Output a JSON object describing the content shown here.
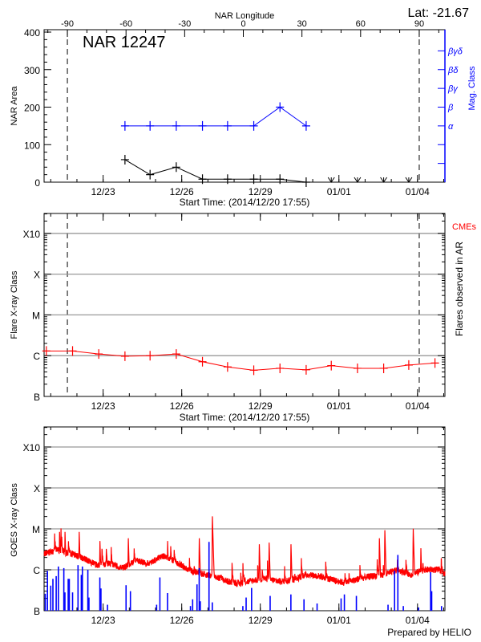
{
  "header": {
    "lat_label": "Lat: -21.67",
    "top_axis_title": "NAR Longitude",
    "footer": "Prepared by HELIO"
  },
  "colors": {
    "axis": "#000000",
    "grid": "#999999",
    "mag_class": "#0000ff",
    "flare": "#ff0000",
    "goes_long": "#ff0000",
    "goes_short": "#0000ff"
  },
  "chart_data": [
    {
      "type": "line",
      "title": "NAR 12247",
      "xlabel": "Start Time: (2014/12/20 17:55)",
      "ylabel": "NAR Area",
      "y2label": "Mag. Class",
      "x_start": "2014-12-20T17:55",
      "x_ticks": [
        {
          "t": "2014-12-23T00:00",
          "label": "12/23"
        },
        {
          "t": "2014-12-26T00:00",
          "label": "12/26"
        },
        {
          "t": "2014-12-29T00:00",
          "label": "12/29"
        },
        {
          "t": "2015-01-01T00:00",
          "label": "01/01"
        },
        {
          "t": "2015-01-04T00:00",
          "label": "01/04"
        }
      ],
      "ylim": [
        0,
        400
      ],
      "y_ticks": [
        0,
        100,
        200,
        300,
        400
      ],
      "top_axis": {
        "title": "NAR Longitude",
        "ticks": [
          -90,
          -60,
          -30,
          0,
          30,
          60,
          90
        ],
        "limb_crossings": [
          {
            "t": "2014-12-21T15:15",
            "lon": -90
          },
          {
            "t": "2015-01-04T01:35",
            "lon": 90
          }
        ]
      },
      "y2_classes": [
        {
          "label": "α",
          "area_equiv": 150
        },
        {
          "label": "β",
          "area_equiv": 200
        },
        {
          "label": "βγ",
          "area_equiv": 250
        },
        {
          "label": "βδ",
          "area_equiv": 300
        },
        {
          "label": "βγδ",
          "area_equiv": 350
        }
      ],
      "grid": false,
      "series": [
        {
          "key": "area",
          "points": [
            [
              "2014-12-23T20:00",
              60
            ],
            [
              "2014-12-24T19:00",
              20
            ],
            [
              "2014-12-25T19:00",
              40
            ],
            [
              "2014-12-26T19:00",
              8
            ],
            [
              "2014-12-27T18:00",
              8
            ],
            [
              "2014-12-28T18:00",
              8
            ],
            [
              "2014-12-29T18:00",
              8
            ],
            [
              "2014-12-30T18:00",
              0
            ]
          ]
        },
        {
          "key": "mag_class",
          "points": [
            [
              "2014-12-23T20:00",
              "α"
            ],
            [
              "2014-12-24T19:00",
              "α"
            ],
            [
              "2014-12-25T19:00",
              "α"
            ],
            [
              "2014-12-26T19:00",
              "α"
            ],
            [
              "2014-12-27T18:00",
              "α"
            ],
            [
              "2014-12-28T18:00",
              "α"
            ],
            [
              "2014-12-29T18:00",
              "β"
            ],
            [
              "2014-12-30T18:00",
              "α"
            ]
          ]
        },
        {
          "key": "no_data_markers",
          "points": [
            "2014-12-31T17:00",
            "2015-01-01T17:00",
            "2015-01-02T17:00",
            "2015-01-03T16:00"
          ]
        }
      ]
    },
    {
      "type": "line",
      "xlabel": "Start Time: (2014/12/20 17:55)",
      "ylabel": "Flare X-ray Class",
      "y2label": "Flares observed in AR",
      "annotation": "CMEs",
      "y_scale": "log",
      "ylim": [
        1e-07,
        0.003
      ],
      "y_ticks": [
        {
          "v": 1e-07,
          "label": "B"
        },
        {
          "v": 1e-06,
          "label": "C"
        },
        {
          "v": 1e-05,
          "label": "M"
        },
        {
          "v": 0.0001,
          "label": "X"
        },
        {
          "v": 0.001,
          "label": "X10"
        }
      ],
      "grid": true,
      "series": [
        {
          "key": "flare_class",
          "points": [
            [
              "2014-12-20T20:00",
              1.3e-06
            ],
            [
              "2014-12-21T20:00",
              1.3e-06
            ],
            [
              "2014-12-22T20:00",
              1.1e-06
            ],
            [
              "2014-12-23T20:00",
              9.7e-07
            ],
            [
              "2014-12-24T19:00",
              1e-06
            ],
            [
              "2014-12-25T19:00",
              1.1e-06
            ],
            [
              "2014-12-26T19:00",
              7.1e-07
            ],
            [
              "2014-12-27T18:00",
              5.3e-07
            ],
            [
              "2014-12-28T18:00",
              4.4e-07
            ],
            [
              "2014-12-29T18:00",
              4.9e-07
            ],
            [
              "2014-12-30T18:00",
              4.5e-07
            ],
            [
              "2014-12-31T17:00",
              5.7e-07
            ],
            [
              "2015-01-01T17:00",
              4.9e-07
            ],
            [
              "2015-01-02T17:00",
              4.9e-07
            ],
            [
              "2015-01-03T16:00",
              5.9e-07
            ],
            [
              "2015-01-04T16:00",
              6.6e-07
            ]
          ]
        }
      ]
    },
    {
      "type": "line",
      "ylabel": "GOES X-ray Class",
      "y_scale": "log",
      "ylim": [
        1e-07,
        0.003
      ],
      "y_ticks": [
        {
          "v": 1e-07,
          "label": "B"
        },
        {
          "v": 1e-06,
          "label": "C"
        },
        {
          "v": 1e-05,
          "label": "M"
        },
        {
          "v": 0.0001,
          "label": "X"
        },
        {
          "v": 0.001,
          "label": "X10"
        }
      ],
      "grid": true,
      "series": [
        {
          "key": "goes_long_background",
          "points": [
            [
              "2014-12-20T18:00",
              2.5e-06
            ],
            [
              "2014-12-21T06:00",
              3e-06
            ],
            [
              "2014-12-21T18:00",
              2.5e-06
            ],
            [
              "2014-12-22T06:00",
              1.9e-06
            ],
            [
              "2014-12-22T18:00",
              1.3e-06
            ],
            [
              "2014-12-23T06:00",
              1.4e-06
            ],
            [
              "2014-12-23T18:00",
              1.1e-06
            ],
            [
              "2014-12-24T06:00",
              1.7e-06
            ],
            [
              "2014-12-24T18:00",
              1.4e-06
            ],
            [
              "2014-12-25T06:00",
              2.2e-06
            ],
            [
              "2014-12-25T18:00",
              1.6e-06
            ],
            [
              "2014-12-26T06:00",
              1e-06
            ],
            [
              "2014-12-26T18:00",
              8e-07
            ],
            [
              "2014-12-27T06:00",
              7e-07
            ],
            [
              "2014-12-27T18:00",
              5.2e-07
            ],
            [
              "2014-12-28T06:00",
              4.5e-07
            ],
            [
              "2014-12-28T18:00",
              5.6e-07
            ],
            [
              "2014-12-29T06:00",
              6e-07
            ],
            [
              "2014-12-29T18:00",
              5.2e-07
            ],
            [
              "2014-12-30T06:00",
              5.6e-07
            ],
            [
              "2014-12-30T18:00",
              7.6e-07
            ],
            [
              "2014-12-31T06:00",
              7e-07
            ],
            [
              "2014-12-31T18:00",
              5.6e-07
            ],
            [
              "2015-01-01T06:00",
              4.8e-07
            ],
            [
              "2015-01-01T18:00",
              6e-07
            ],
            [
              "2015-01-02T06:00",
              7e-07
            ],
            [
              "2015-01-02T18:00",
              7.6e-07
            ],
            [
              "2015-01-03T06:00",
              1e-06
            ],
            [
              "2015-01-03T18:00",
              7.6e-07
            ],
            [
              "2015-01-04T06:00",
              1e-06
            ],
            [
              "2015-01-04T18:00",
              1e-06
            ],
            [
              "2015-01-05T01:00",
              8e-07
            ]
          ]
        },
        {
          "key": "goes_long_peaks",
          "points": [
            [
              "2014-12-21T08:00",
              1e-05
            ],
            [
              "2014-12-21T13:00",
              1e-05
            ],
            [
              "2014-12-22T02:00",
              1e-05
            ],
            [
              "2014-12-22T21:00",
              6e-06
            ],
            [
              "2014-12-23T23:00",
              7e-06
            ],
            [
              "2014-12-25T11:00",
              6e-06
            ],
            [
              "2014-12-26T16:00",
              7e-06
            ],
            [
              "2014-12-27T04:00",
              2.4e-05
            ],
            [
              "2014-12-28T23:00",
              5e-06
            ],
            [
              "2014-12-29T08:00",
              5.5e-06
            ],
            [
              "2014-12-30T04:00",
              5e-06
            ],
            [
              "2015-01-02T13:00",
              7e-06
            ],
            [
              "2015-01-02T18:00",
              1.1e-05
            ],
            [
              "2015-01-03T20:00",
              1.2e-05
            ],
            [
              "2015-01-04T03:00",
              4e-06
            ]
          ]
        },
        {
          "key": "goes_short",
          "points": [
            [
              "2014-12-20T19:00",
              2.6e-07
            ],
            [
              "2014-12-20T21:00",
              9.4e-07
            ],
            [
              "2014-12-21T00:00",
              4.1e-07
            ],
            [
              "2014-12-21T02:00",
              6e-07
            ],
            [
              "2014-12-21T05:00",
              7e-07
            ],
            [
              "2014-12-21T07:00",
              1.2e-06
            ],
            [
              "2014-12-21T12:00",
              1.1e-06
            ],
            [
              "2014-12-21T13:00",
              2.8e-07
            ],
            [
              "2014-12-21T16:00",
              6e-07
            ],
            [
              "2014-12-21T17:00",
              6e-07
            ],
            [
              "2014-12-21T20:00",
              2.8e-07
            ],
            [
              "2014-12-22T01:00",
              1.3e-06
            ],
            [
              "2014-12-22T04:00",
              7.5e-07
            ],
            [
              "2014-12-22T05:00",
              1.2e-06
            ],
            [
              "2014-12-22T10:00",
              1e-06
            ],
            [
              "2014-12-22T11:00",
              2.1e-07
            ],
            [
              "2014-12-22T21:00",
              6.5e-07
            ],
            [
              "2014-12-22T22:00",
              3.5e-07
            ],
            [
              "2014-12-23T04:00",
              1.4e-07
            ],
            [
              "2014-12-23T21:00",
              4.2e-07
            ],
            [
              "2014-12-24T01:00",
              3e-07
            ],
            [
              "2014-12-25T01:00",
              1.4e-07
            ],
            [
              "2014-12-25T04:00",
              6.5e-07
            ],
            [
              "2014-12-25T11:00",
              2.7e-07
            ],
            [
              "2014-12-26T08:00",
              1.3e-07
            ],
            [
              "2014-12-26T10:00",
              1.9e-07
            ],
            [
              "2014-12-26T14:00",
              4.4e-07
            ],
            [
              "2014-12-26T16:00",
              1.1e-06
            ],
            [
              "2014-12-26T17:00",
              1.7e-07
            ],
            [
              "2014-12-27T01:00",
              4.8e-06
            ],
            [
              "2014-12-27T04:00",
              1.6e-07
            ],
            [
              "2014-12-28T08:00",
              1.3e-07
            ],
            [
              "2014-12-28T11:00",
              2.1e-07
            ],
            [
              "2014-12-28T16:00",
              3.6e-07
            ],
            [
              "2014-12-29T09:00",
              2.3e-07
            ],
            [
              "2014-12-30T04:00",
              2.5e-07
            ],
            [
              "2014-12-30T16:00",
              1.9e-07
            ],
            [
              "2014-12-31T04:00",
              1.5e-07
            ],
            [
              "2015-01-01T02:00",
              2e-07
            ],
            [
              "2015-01-01T05:00",
              2.5e-07
            ],
            [
              "2015-01-01T16:00",
              2.3e-07
            ],
            [
              "2015-01-02T21:00",
              1.4e-07
            ],
            [
              "2015-01-03T03:00",
              9.4e-07
            ],
            [
              "2015-01-03T06:00",
              2.3e-06
            ],
            [
              "2015-01-03T11:00",
              1.3e-07
            ],
            [
              "2015-01-04T01:00",
              1.2e-07
            ],
            [
              "2015-01-04T12:00",
              8.7e-07
            ],
            [
              "2015-01-04T13:00",
              3e-07
            ],
            [
              "2015-01-04T22:00",
              1.3e-07
            ]
          ]
        }
      ]
    }
  ]
}
